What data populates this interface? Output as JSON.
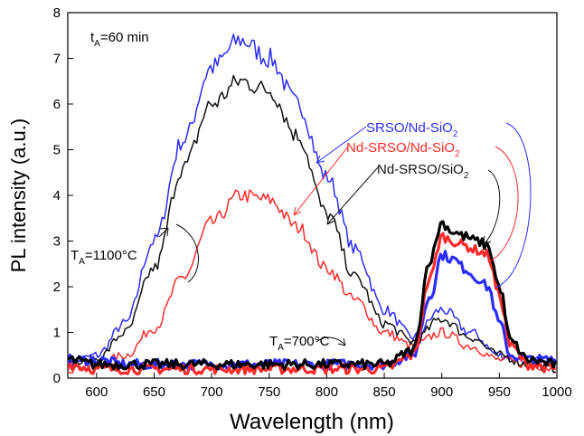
{
  "chart_data": {
    "type": "line",
    "xlabel": "Wavelength (nm)",
    "ylabel": "PL intensity (a.u.)",
    "xlim": [
      575,
      1000
    ],
    "ylim": [
      0,
      8
    ],
    "x_ticks": [
      600,
      650,
      700,
      750,
      800,
      850,
      900,
      950,
      1000
    ],
    "y_ticks": [
      0,
      1,
      2,
      3,
      4,
      5,
      6,
      7,
      8
    ],
    "grid": false,
    "annotations": {
      "anneal_time": {
        "prefix": "t",
        "sub": "A",
        "suffix": "=60 min"
      },
      "temp_high": {
        "prefix": "T",
        "sub": "A",
        "suffix": "=1100°C"
      },
      "temp_low": {
        "prefix": "T",
        "sub": "A",
        "suffix": "=700°C"
      }
    },
    "series": [
      {
        "name_main": "SRSO/Nd-SiO",
        "name_sub": "2",
        "color": "#2b2bff",
        "group": "1100C",
        "x": [
          575,
          600,
          625,
          650,
          675,
          700,
          725,
          750,
          775,
          800,
          825,
          850,
          875,
          900,
          925,
          950,
          975,
          1000
        ],
        "values": [
          0.3,
          0.5,
          1.2,
          3.0,
          5.2,
          6.8,
          7.4,
          7.0,
          6.0,
          4.4,
          2.8,
          1.5,
          0.9,
          1.5,
          1.0,
          0.5,
          0.4,
          0.3
        ]
      },
      {
        "name_main": "Nd-SRSO/Nd-SiO",
        "name_sub": "2",
        "color": "#ff2a2a",
        "group": "1100C",
        "x": [
          575,
          600,
          625,
          650,
          675,
          700,
          725,
          750,
          775,
          800,
          825,
          850,
          875,
          900,
          925,
          950,
          975,
          1000
        ],
        "values": [
          0.2,
          0.3,
          0.5,
          1.1,
          2.2,
          3.4,
          4.0,
          3.9,
          3.3,
          2.4,
          1.7,
          1.0,
          0.7,
          1.0,
          0.7,
          0.4,
          0.3,
          0.2
        ]
      },
      {
        "name_main": "Nd-SRSO/SiO",
        "name_sub": "2",
        "color": "#111111",
        "group": "1100C",
        "x": [
          575,
          600,
          625,
          650,
          675,
          700,
          725,
          750,
          775,
          800,
          825,
          850,
          875,
          900,
          925,
          950,
          975,
          1000
        ],
        "values": [
          0.3,
          0.4,
          1.0,
          2.4,
          4.6,
          6.0,
          6.5,
          6.3,
          5.3,
          3.6,
          2.2,
          1.2,
          0.8,
          1.3,
          0.9,
          0.5,
          0.3,
          0.2
        ]
      },
      {
        "name_main": "SRSO/Nd-SiO",
        "name_sub": "2",
        "color": "#2b2bff",
        "group": "700C",
        "x": [
          575,
          600,
          625,
          650,
          675,
          700,
          725,
          750,
          775,
          800,
          825,
          850,
          875,
          890,
          900,
          910,
          920,
          930,
          940,
          950,
          960,
          975,
          1000
        ],
        "values": [
          0.4,
          0.4,
          0.3,
          0.3,
          0.3,
          0.3,
          0.3,
          0.3,
          0.3,
          0.3,
          0.3,
          0.3,
          0.5,
          1.8,
          2.7,
          2.6,
          2.4,
          2.2,
          2.0,
          1.2,
          0.5,
          0.4,
          0.4
        ]
      },
      {
        "name_main": "Nd-SRSO/Nd-SiO",
        "name_sub": "2",
        "color": "#ff2a2a",
        "group": "700C",
        "x": [
          575,
          600,
          625,
          650,
          675,
          700,
          725,
          750,
          775,
          800,
          825,
          850,
          875,
          890,
          900,
          910,
          920,
          930,
          940,
          950,
          960,
          975,
          1000
        ],
        "values": [
          0.3,
          0.2,
          0.2,
          0.2,
          0.2,
          0.2,
          0.2,
          0.2,
          0.2,
          0.2,
          0.2,
          0.2,
          0.5,
          2.2,
          3.1,
          3.0,
          2.9,
          2.8,
          2.7,
          1.8,
          0.7,
          0.3,
          0.2
        ]
      },
      {
        "name_main": "Nd-SRSO/SiO",
        "name_sub": "2",
        "color": "#000000",
        "group": "700C",
        "x": [
          575,
          600,
          625,
          650,
          675,
          700,
          725,
          750,
          775,
          800,
          825,
          850,
          875,
          890,
          900,
          910,
          920,
          930,
          940,
          950,
          960,
          975,
          1000
        ],
        "values": [
          0.4,
          0.3,
          0.3,
          0.3,
          0.3,
          0.3,
          0.3,
          0.3,
          0.3,
          0.3,
          0.3,
          0.3,
          0.6,
          2.6,
          3.4,
          3.2,
          3.1,
          3.0,
          2.9,
          2.0,
          0.8,
          0.4,
          0.3
        ]
      }
    ]
  }
}
